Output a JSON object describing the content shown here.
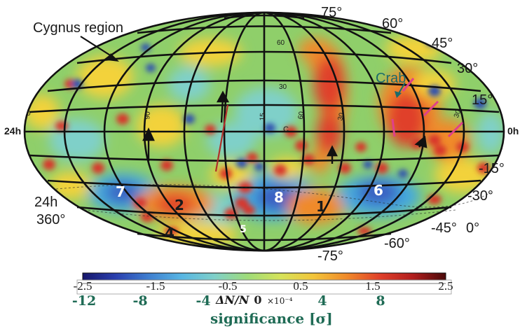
{
  "map": {
    "projection": "Hammer-Aitoff equatorial sky map",
    "colors": {
      "background": "#8fcf6a",
      "excess_strong": "#e0402a",
      "excess_mid": "#f08a2a",
      "excess_weak": "#f3d23b",
      "deficit_mid": "#45a9dd",
      "deficit_strong": "#3a5fc2",
      "source_red": "#d8342a",
      "source_blue": "#2f4fb0",
      "grid": "#111111"
    }
  },
  "labels": {
    "cygnus": "Cygnus region",
    "crab": "Crab",
    "ra_24h": "24h",
    "ra_360": "360°",
    "ra_0h_left": "24h",
    "ra_0h_right": "0h",
    "dec_0": "0°"
  },
  "dec_labels": [
    {
      "text": "75°"
    },
    {
      "text": "60°"
    },
    {
      "text": "45°"
    },
    {
      "text": "30°"
    },
    {
      "text": "15°"
    },
    {
      "text": "-15°"
    },
    {
      "text": "-30°"
    },
    {
      "text": "-45°"
    },
    {
      "text": "-60°"
    },
    {
      "text": "-75°"
    }
  ],
  "grid_numbers": [
    "90",
    "60",
    "30",
    "15",
    "60",
    "30",
    "30",
    "0",
    "C"
  ],
  "regions": [
    {
      "num": "7",
      "color": "#ffffff"
    },
    {
      "num": "2",
      "color": "#1a1a1a"
    },
    {
      "num": "8",
      "color": "#ffffff"
    },
    {
      "num": "1",
      "color": "#1a1a1a"
    },
    {
      "num": "6",
      "color": "#ffffff"
    },
    {
      "num": "4",
      "color": "#1a1a1a"
    },
    {
      "num": "5",
      "color": "#ffffff"
    }
  ],
  "colorbar": {
    "relative_ticks": [
      "-2.5",
      "-1.5",
      "-0.5",
      "0.5",
      "1.5",
      "2.5"
    ],
    "relative_min": -2.5,
    "relative_max": 2.5,
    "relative_unit": "×10⁻⁴",
    "relative_label": "ΔN/N",
    "significance_ticks": [
      "-12",
      "-8",
      "-4",
      "0",
      "4",
      "8"
    ],
    "significance_label": "significance [σ]",
    "stops": [
      "#17176b",
      "#2a3fae",
      "#3f7fd0",
      "#58b6e3",
      "#7fd0c9",
      "#9fdc79",
      "#d6e35a",
      "#f3c53a",
      "#f08a2a",
      "#e0402a",
      "#b21e1e",
      "#4a0a0a"
    ]
  }
}
